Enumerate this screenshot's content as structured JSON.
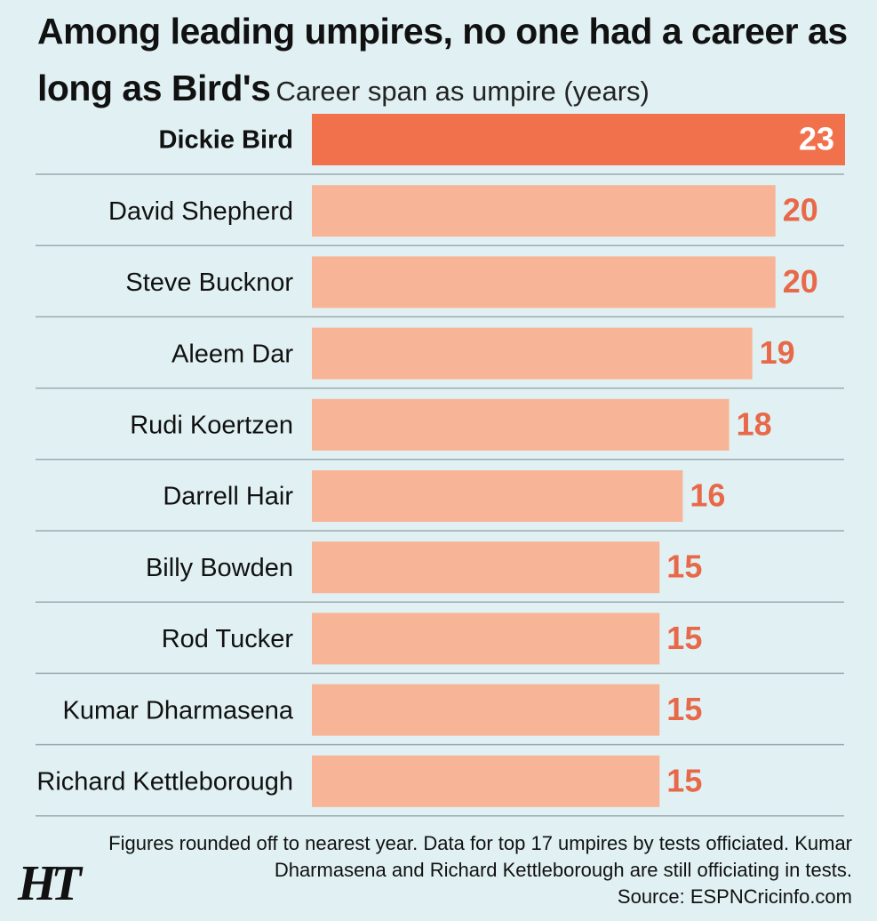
{
  "chart_data": {
    "type": "barh",
    "title": "Among leading umpires, no one had a career as long as Bird's",
    "subtitle": "Career span as umpire (years)",
    "categories": [
      "Dickie Bird",
      "David Shepherd",
      "Steve Bucknor",
      "Aleem Dar",
      "Rudi Koertzen",
      "Darrell Hair",
      "Billy Bowden",
      "Rod Tucker",
      "Kumar Dharmasena",
      "Richard Kettleborough"
    ],
    "values": [
      23,
      20,
      20,
      19,
      18,
      16,
      15,
      15,
      15,
      15
    ],
    "colors": [
      "#f2714d",
      "#f8b496",
      "#f8b496",
      "#f8b496",
      "#f8b496",
      "#f8b496",
      "#f8b496",
      "#f8b496",
      "#f8b496",
      "#f8b496"
    ],
    "note": "Figures rounded off to nearest year. Data for top 17 umpires by tests officiated. Kumar Dharmasena and Richard Kettleborough are still officiating in tests.",
    "source": "Source: ESPNCricinfo.com",
    "logo": "HT"
  }
}
